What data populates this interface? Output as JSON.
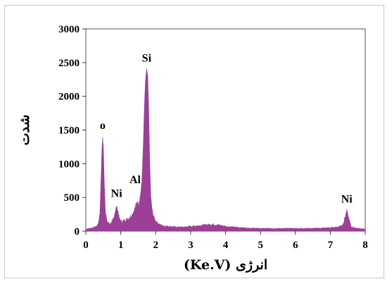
{
  "chart_data": {
    "type": "area",
    "xlabel": "انرژی (Ke.V)",
    "ylabel": "شدت",
    "xlim": [
      0,
      8
    ],
    "ylim": [
      0,
      3000
    ],
    "x_ticks": [
      "0",
      "1",
      "2",
      "3",
      "4",
      "5",
      "6",
      "7",
      "8"
    ],
    "y_ticks": [
      "0",
      "500",
      "1000",
      "1500",
      "2000",
      "2500",
      "3000"
    ],
    "grid": false,
    "series_color": "#9b3f97",
    "peaks": [
      {
        "label": "o",
        "x": 0.48,
        "y": 1390
      },
      {
        "label": "Ni",
        "x": 0.88,
        "y": 360
      },
      {
        "label": "Al",
        "x": 1.49,
        "y": 440
      },
      {
        "label": "Si",
        "x": 1.74,
        "y": 2390
      },
      {
        "label": "Ni",
        "x": 7.47,
        "y": 300
      }
    ],
    "spectrum": {
      "x": [
        0.0,
        0.1,
        0.2,
        0.3,
        0.35,
        0.4,
        0.43,
        0.46,
        0.48,
        0.5,
        0.53,
        0.56,
        0.6,
        0.65,
        0.7,
        0.75,
        0.8,
        0.84,
        0.88,
        0.92,
        0.96,
        1.0,
        1.05,
        1.1,
        1.15,
        1.2,
        1.25,
        1.3,
        1.35,
        1.4,
        1.44,
        1.47,
        1.49,
        1.51,
        1.53,
        1.56,
        1.6,
        1.64,
        1.68,
        1.71,
        1.74,
        1.77,
        1.8,
        1.83,
        1.86,
        1.9,
        1.95,
        2.0,
        2.1,
        2.2,
        2.4,
        2.6,
        2.8,
        3.0,
        3.2,
        3.4,
        3.6,
        3.8,
        4.0,
        4.2,
        4.5,
        5.0,
        5.5,
        6.0,
        6.5,
        7.0,
        7.2,
        7.35,
        7.42,
        7.47,
        7.52,
        7.6,
        7.8,
        8.0
      ],
      "y": [
        30,
        40,
        50,
        70,
        100,
        250,
        700,
        1200,
        1390,
        1250,
        700,
        300,
        150,
        120,
        110,
        130,
        200,
        300,
        360,
        300,
        180,
        150,
        140,
        160,
        170,
        180,
        200,
        230,
        270,
        330,
        400,
        440,
        420,
        390,
        450,
        520,
        700,
        1200,
        1900,
        2250,
        2390,
        2300,
        1800,
        1000,
        500,
        300,
        200,
        150,
        100,
        80,
        70,
        60,
        60,
        70,
        80,
        90,
        100,
        90,
        70,
        60,
        50,
        40,
        40,
        40,
        40,
        50,
        60,
        90,
        200,
        300,
        200,
        60,
        40,
        30
      ]
    }
  }
}
